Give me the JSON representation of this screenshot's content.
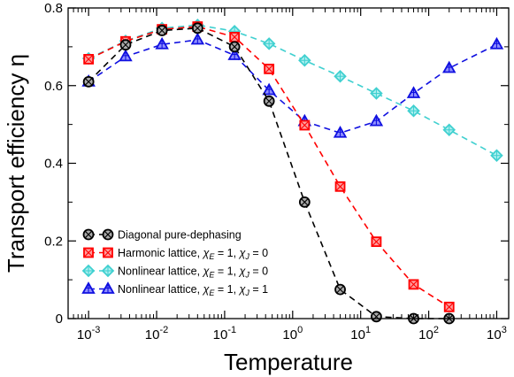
{
  "chart_data": {
    "type": "line",
    "xlabel": "Temperature",
    "ylabel": "Transport efficiency η",
    "xscale": "log",
    "xlim": [
      0.0005,
      1500
    ],
    "ylim": [
      0,
      0.8
    ],
    "grid": false,
    "legend_position": "lower-left",
    "x_ticks": [
      {
        "value": 0.001,
        "base": "10",
        "exp": "-3"
      },
      {
        "value": 0.01,
        "base": "10",
        "exp": "-2"
      },
      {
        "value": 0.1,
        "base": "10",
        "exp": "-1"
      },
      {
        "value": 1,
        "base": "10",
        "exp": "0"
      },
      {
        "value": 10,
        "base": "10",
        "exp": "1"
      },
      {
        "value": 100,
        "base": "10",
        "exp": "2"
      },
      {
        "value": 1000,
        "base": "10",
        "exp": "3"
      }
    ],
    "y_ticks": [
      {
        "value": 0,
        "label": "0"
      },
      {
        "value": 0.2,
        "label": "0.2"
      },
      {
        "value": 0.4,
        "label": "0.4"
      },
      {
        "value": 0.6,
        "label": "0.6"
      },
      {
        "value": 0.8,
        "label": "0.8"
      }
    ],
    "series": [
      {
        "name": "Diagonal pure-dephasing",
        "color": "#000000",
        "fill": "#aaaaaa",
        "marker": "circle",
        "x": [
          0.001,
          0.0035,
          0.012,
          0.04,
          0.14,
          0.45,
          1.5,
          5,
          17,
          60,
          200
        ],
        "y": [
          0.61,
          0.705,
          0.742,
          0.748,
          0.7,
          0.56,
          0.3,
          0.075,
          0.005,
          0.0,
          0.0
        ]
      },
      {
        "name": "Harmonic lattice, χE = 1, χJ = 0",
        "name_parts": {
          "prefix": "Harmonic lattice, ",
          "e": "E",
          "j": "J",
          "eq1": " = 1, ",
          "eq2": " = 0"
        },
        "color": "#ff0000",
        "fill": "#ff9c9c",
        "marker": "square",
        "x": [
          0.001,
          0.0035,
          0.012,
          0.04,
          0.14,
          0.45,
          1.5,
          5,
          17,
          60,
          200
        ],
        "y": [
          0.668,
          0.714,
          0.745,
          0.752,
          0.725,
          0.643,
          0.498,
          0.34,
          0.198,
          0.088,
          0.03
        ]
      },
      {
        "name": "Nonlinear lattice, χE = 1, χJ = 0",
        "name_parts": {
          "prefix": "Nonlinear lattice, ",
          "e": "E",
          "j": "J",
          "eq1": " = 1, ",
          "eq2": " = 0"
        },
        "color": "#40d0d0",
        "fill": "#b0f0f0",
        "marker": "diamond",
        "x": [
          0.001,
          0.0035,
          0.012,
          0.04,
          0.14,
          0.45,
          1.5,
          5,
          17,
          60,
          200,
          1000
        ],
        "y": [
          0.67,
          0.715,
          0.748,
          0.756,
          0.74,
          0.708,
          0.665,
          0.624,
          0.58,
          0.535,
          0.486,
          0.42
        ]
      },
      {
        "name": "Nonlinear lattice, χE = 1, χJ = 1",
        "name_parts": {
          "prefix": "Nonlinear lattice, ",
          "e": "E",
          "j": "J",
          "eq1": " = 1, ",
          "eq2": " = 1"
        },
        "color": "#1010e0",
        "fill": "#9090ff",
        "marker": "triangle",
        "x": [
          0.001,
          0.0035,
          0.012,
          0.04,
          0.14,
          0.45,
          1.5,
          5,
          17,
          60,
          200,
          1000
        ],
        "y": [
          0.61,
          0.675,
          0.706,
          0.718,
          0.678,
          0.588,
          0.508,
          0.478,
          0.508,
          0.58,
          0.645,
          0.706
        ]
      }
    ]
  }
}
